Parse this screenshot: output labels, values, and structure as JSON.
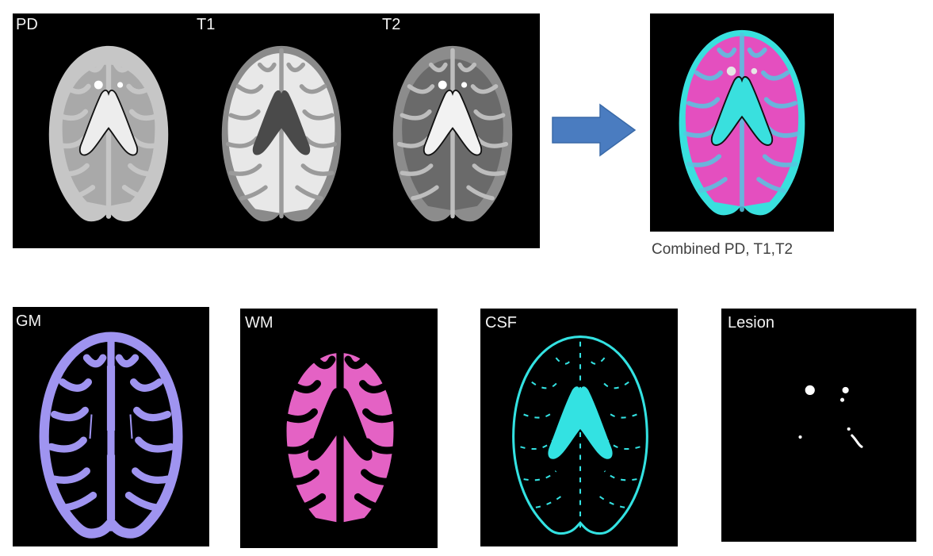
{
  "top_panel": {
    "labels": [
      "PD",
      "T1",
      "T2"
    ]
  },
  "combined": {
    "caption": "Combined PD, T1,T2"
  },
  "segmentations": [
    {
      "label": "GM",
      "color": "#9f94f0"
    },
    {
      "label": "WM",
      "color": "#e462c4"
    },
    {
      "label": "CSF",
      "color": "#33e2e2"
    },
    {
      "label": "Lesion",
      "color": "#ffffff"
    }
  ],
  "colors": {
    "arrow": "#4a7cc0",
    "background": "#000000",
    "combined_tissue": "#e44fbf",
    "combined_csf": "#39e0de"
  },
  "icons": [
    "right-arrow-icon"
  ]
}
